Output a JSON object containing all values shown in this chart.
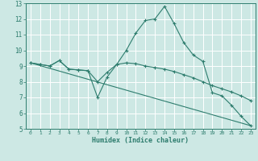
{
  "xlabel": "Humidex (Indice chaleur)",
  "bg_color": "#cde8e4",
  "grid_color": "#ffffff",
  "line_color": "#2e7d6e",
  "xlim": [
    -0.5,
    23.5
  ],
  "ylim": [
    5,
    13
  ],
  "xticks": [
    0,
    1,
    2,
    3,
    4,
    5,
    6,
    7,
    8,
    9,
    10,
    11,
    12,
    13,
    14,
    15,
    16,
    17,
    18,
    19,
    20,
    21,
    22,
    23
  ],
  "yticks": [
    5,
    6,
    7,
    8,
    9,
    10,
    11,
    12,
    13
  ],
  "series": [
    {
      "x": [
        0,
        1,
        2,
        3,
        4,
        5,
        6,
        7,
        8,
        9,
        10,
        11,
        12,
        13,
        14,
        15,
        16,
        17,
        18,
        19,
        20,
        21,
        22,
        23
      ],
      "y": [
        9.2,
        9.1,
        9.0,
        9.35,
        8.8,
        8.75,
        8.7,
        7.0,
        8.3,
        9.1,
        10.0,
        11.1,
        11.9,
        12.0,
        12.8,
        11.7,
        10.5,
        9.7,
        9.3,
        7.3,
        7.1,
        6.5,
        5.8,
        5.2
      ]
    },
    {
      "x": [
        0,
        1,
        2,
        3,
        4,
        5,
        6,
        7,
        8,
        9,
        10,
        11,
        12,
        13,
        14,
        15,
        16,
        17,
        18,
        19,
        20,
        21,
        22,
        23
      ],
      "y": [
        9.2,
        9.1,
        9.0,
        9.35,
        8.8,
        8.75,
        8.7,
        8.0,
        8.6,
        9.1,
        9.2,
        9.15,
        9.0,
        8.9,
        8.8,
        8.65,
        8.45,
        8.25,
        8.0,
        7.75,
        7.55,
        7.35,
        7.1,
        6.8
      ]
    },
    {
      "x": [
        0,
        23
      ],
      "y": [
        9.2,
        5.2
      ]
    }
  ]
}
